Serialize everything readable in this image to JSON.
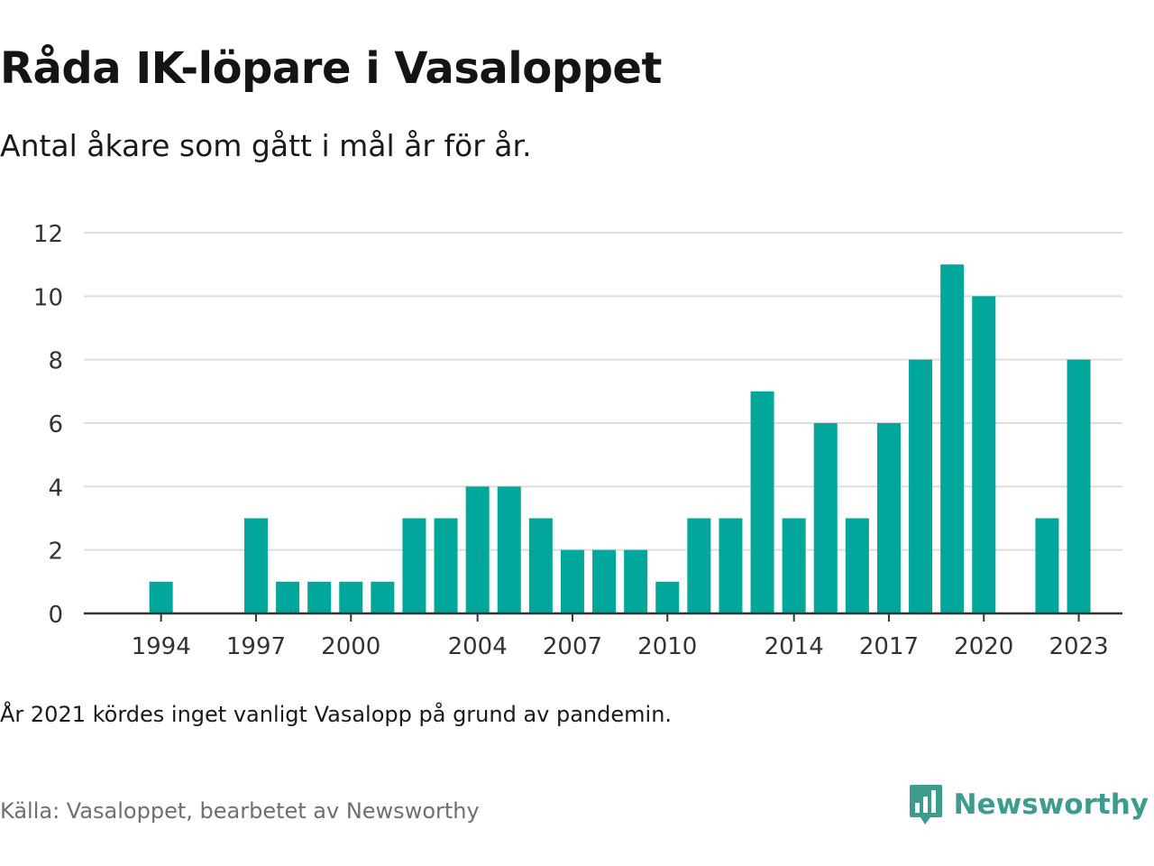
{
  "title": "Råda IK-löpare i Vasaloppet",
  "subtitle": "Antal åkare som gått i mål år för år.",
  "note": "År 2021 kördes inget vanligt Vasalopp på grund av pandemin.",
  "source": "Källa: Vasaloppet, bearbetet av Newsworthy",
  "brand": {
    "name": "Newsworthy",
    "icon": "newsworthy-logo-icon"
  },
  "colors": {
    "bar": "#00a79a",
    "grid": "#dddddd",
    "axis": "#333333",
    "brand": "#3c9d8e"
  },
  "chart_data": {
    "type": "bar",
    "categories": [
      1993,
      1994,
      1995,
      1996,
      1997,
      1998,
      1999,
      2000,
      2001,
      2002,
      2003,
      2004,
      2005,
      2006,
      2007,
      2008,
      2009,
      2010,
      2011,
      2012,
      2013,
      2014,
      2015,
      2016,
      2017,
      2018,
      2019,
      2020,
      2021,
      2022,
      2023
    ],
    "values": [
      0,
      1,
      0,
      0,
      3,
      1,
      1,
      1,
      1,
      3,
      3,
      4,
      4,
      3,
      2,
      2,
      2,
      1,
      3,
      3,
      7,
      3,
      6,
      3,
      6,
      8,
      11,
      10,
      0,
      3,
      8
    ],
    "x_tick_labels": [
      1994,
      1997,
      2000,
      2004,
      2007,
      2010,
      2014,
      2017,
      2020,
      2023
    ],
    "y_ticks": [
      0,
      2,
      4,
      6,
      8,
      10,
      12
    ],
    "ylim": [
      0,
      12
    ],
    "xlabel": "",
    "ylabel": "",
    "grid": true,
    "legend": "none"
  }
}
